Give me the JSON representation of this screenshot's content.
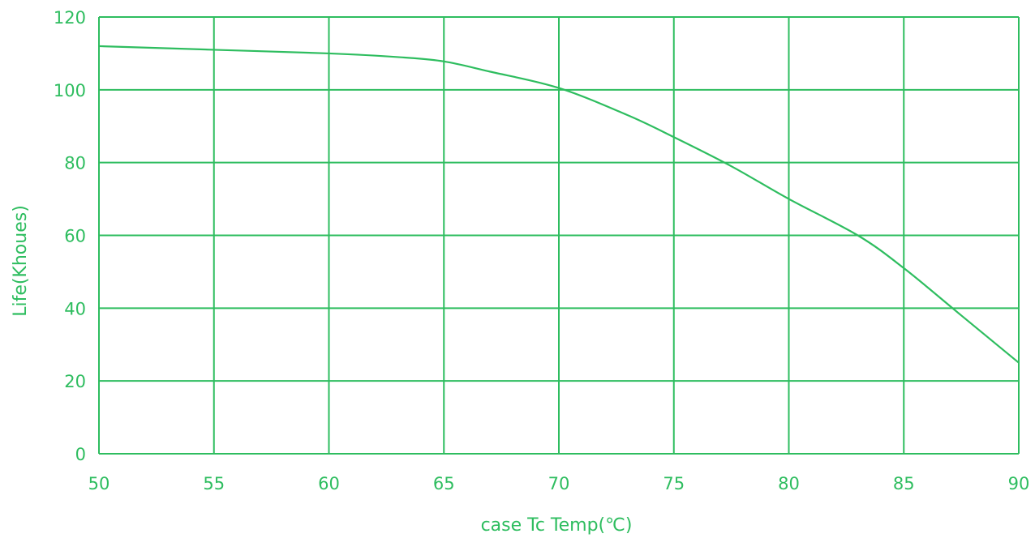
{
  "chart_data": {
    "type": "line",
    "title": "",
    "xlabel": "case Tc Temp(℃)",
    "ylabel": "Life(Khoues)",
    "xlim": [
      50,
      90
    ],
    "ylim": [
      0,
      120
    ],
    "x_ticks": [
      50,
      55,
      60,
      65,
      70,
      75,
      80,
      85,
      90
    ],
    "y_ticks": [
      0,
      20,
      40,
      60,
      80,
      100,
      120
    ],
    "grid": true,
    "legend": "none",
    "colors": {
      "line": "#2ebd5f",
      "grid": "#2ebd5f",
      "text": "#2ebd5f"
    },
    "series": [
      {
        "x": [
          50,
          55,
          60,
          63,
          65,
          67,
          70,
          73,
          75,
          77.5,
          80,
          83,
          85,
          87.5,
          90
        ],
        "values": [
          112,
          111,
          110,
          109,
          107.8,
          105,
          100.5,
          93,
          87,
          79,
          70,
          60,
          51,
          38,
          25
        ]
      }
    ]
  }
}
